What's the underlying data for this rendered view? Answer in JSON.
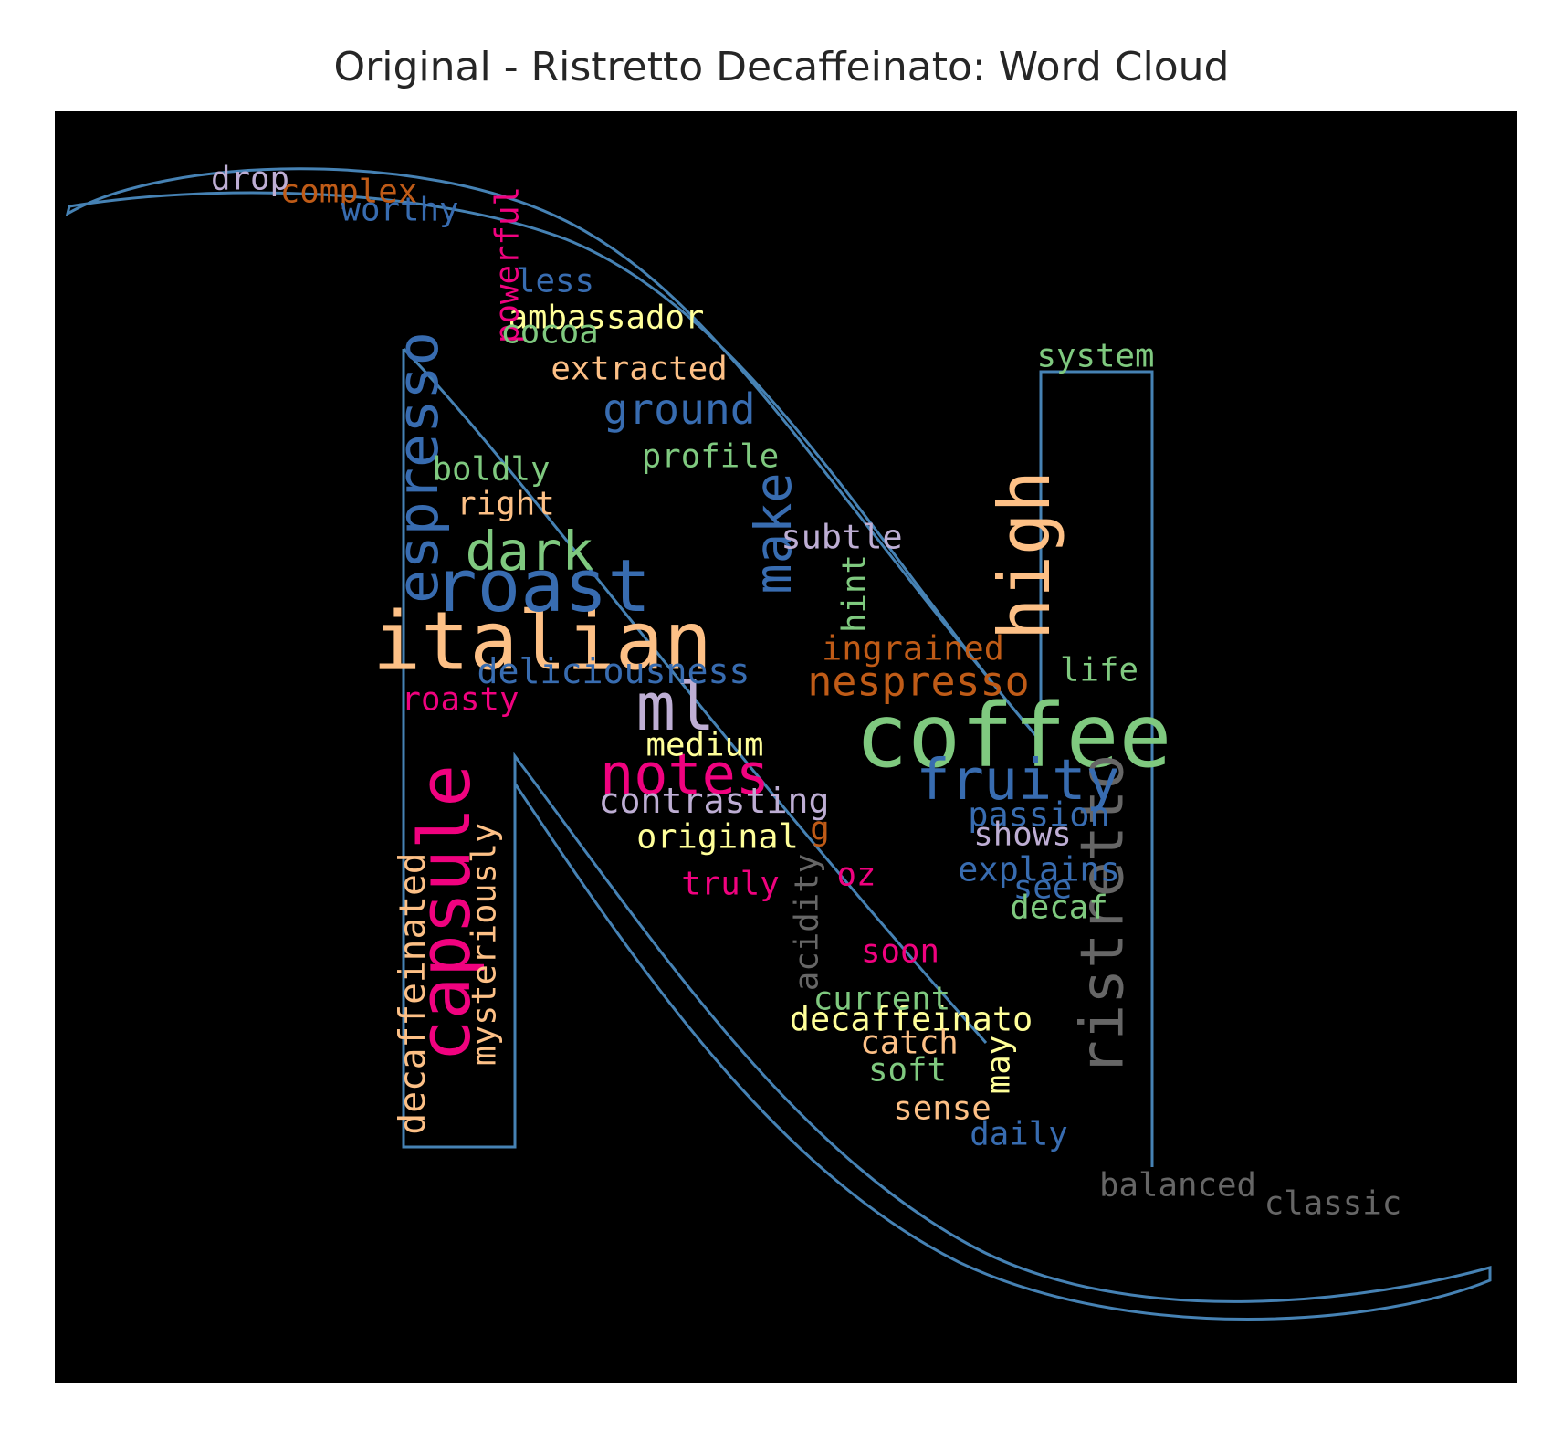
{
  "chart_data": {
    "type": "wordcloud",
    "title": "Original - Ristretto Decaffeinato: Word Cloud",
    "background": "#000000",
    "outline_color": "#4682b4",
    "colors": {
      "green": "#7fc97f",
      "lavender": "#beaed4",
      "peach": "#fdc086",
      "yellow": "#ffff99",
      "blue": "#386cb0",
      "pink": "#f0027f",
      "orange": "#bf5b17",
      "gray": "#666666"
    },
    "words": [
      {
        "text": "coffee",
        "weight": 1.0,
        "color": "green",
        "vertical": false
      },
      {
        "text": "italian",
        "weight": 0.92,
        "color": "peach",
        "vertical": false
      },
      {
        "text": "roast",
        "weight": 0.82,
        "color": "blue",
        "vertical": false
      },
      {
        "text": "high",
        "weight": 0.8,
        "color": "peach",
        "vertical": true
      },
      {
        "text": "capsule",
        "weight": 0.8,
        "color": "pink",
        "vertical": true
      },
      {
        "text": "ml",
        "weight": 0.74,
        "color": "lavender",
        "vertical": false
      },
      {
        "text": "ristretto",
        "weight": 0.66,
        "color": "gray",
        "vertical": true
      },
      {
        "text": "espresso",
        "weight": 0.62,
        "color": "blue",
        "vertical": true
      },
      {
        "text": "fruity",
        "weight": 0.62,
        "color": "blue",
        "vertical": false
      },
      {
        "text": "notes",
        "weight": 0.62,
        "color": "pink",
        "vertical": false
      },
      {
        "text": "dark",
        "weight": 0.58,
        "color": "green",
        "vertical": false
      },
      {
        "text": "make",
        "weight": 0.54,
        "color": "blue",
        "vertical": true
      },
      {
        "text": "ground",
        "weight": 0.42,
        "color": "blue",
        "vertical": false
      },
      {
        "text": "nespresso",
        "weight": 0.4,
        "color": "orange",
        "vertical": false
      },
      {
        "text": "decaffeinated",
        "weight": 0.32,
        "color": "peach",
        "vertical": true
      },
      {
        "text": "contrasting",
        "weight": 0.3,
        "color": "lavender",
        "vertical": false
      },
      {
        "text": "deliciousness",
        "weight": 0.3,
        "color": "blue",
        "vertical": false
      },
      {
        "text": "mysteriously",
        "weight": 0.28,
        "color": "peach",
        "vertical": true
      },
      {
        "text": "original",
        "weight": 0.28,
        "color": "yellow",
        "vertical": false
      },
      {
        "text": "explains",
        "weight": 0.28,
        "color": "blue",
        "vertical": false
      },
      {
        "text": "decaffeinato",
        "weight": 0.28,
        "color": "yellow",
        "vertical": false
      },
      {
        "text": "subtle",
        "weight": 0.28,
        "color": "lavender",
        "vertical": false
      },
      {
        "text": "ingrained",
        "weight": 0.28,
        "color": "orange",
        "vertical": false
      },
      {
        "text": "passion",
        "weight": 0.28,
        "color": "blue",
        "vertical": false
      },
      {
        "text": "extracted",
        "weight": 0.26,
        "color": "peach",
        "vertical": false
      },
      {
        "text": "ambassador",
        "weight": 0.26,
        "color": "yellow",
        "vertical": false
      },
      {
        "text": "powerful",
        "weight": 0.26,
        "color": "pink",
        "vertical": true
      },
      {
        "text": "complex",
        "weight": 0.26,
        "color": "orange",
        "vertical": false
      },
      {
        "text": "worthy",
        "weight": 0.26,
        "color": "blue",
        "vertical": false
      },
      {
        "text": "drop",
        "weight": 0.26,
        "color": "lavender",
        "vertical": false
      },
      {
        "text": "less",
        "weight": 0.26,
        "color": "blue",
        "vertical": false
      },
      {
        "text": "cocoa",
        "weight": 0.26,
        "color": "green",
        "vertical": false
      },
      {
        "text": "system",
        "weight": 0.26,
        "color": "green",
        "vertical": false
      },
      {
        "text": "profile",
        "weight": 0.26,
        "color": "green",
        "vertical": false
      },
      {
        "text": "boldly",
        "weight": 0.26,
        "color": "green",
        "vertical": false
      },
      {
        "text": "right",
        "weight": 0.26,
        "color": "peach",
        "vertical": false
      },
      {
        "text": "hint",
        "weight": 0.26,
        "color": "green",
        "vertical": true
      },
      {
        "text": "life",
        "weight": 0.26,
        "color": "green",
        "vertical": false
      },
      {
        "text": "roasty",
        "weight": 0.26,
        "color": "pink",
        "vertical": false
      },
      {
        "text": "medium",
        "weight": 0.26,
        "color": "yellow",
        "vertical": false
      },
      {
        "text": "shows",
        "weight": 0.26,
        "color": "lavender",
        "vertical": false
      },
      {
        "text": "g",
        "weight": 0.26,
        "color": "orange",
        "vertical": false
      },
      {
        "text": "truly",
        "weight": 0.26,
        "color": "pink",
        "vertical": false
      },
      {
        "text": "oz",
        "weight": 0.26,
        "color": "pink",
        "vertical": false
      },
      {
        "text": "see",
        "weight": 0.26,
        "color": "blue",
        "vertical": false
      },
      {
        "text": "decaf",
        "weight": 0.26,
        "color": "green",
        "vertical": false
      },
      {
        "text": "acidity",
        "weight": 0.26,
        "color": "gray",
        "vertical": true
      },
      {
        "text": "soon",
        "weight": 0.26,
        "color": "pink",
        "vertical": false
      },
      {
        "text": "current",
        "weight": 0.26,
        "color": "green",
        "vertical": false
      },
      {
        "text": "catch",
        "weight": 0.26,
        "color": "peach",
        "vertical": false
      },
      {
        "text": "soft",
        "weight": 0.26,
        "color": "green",
        "vertical": false
      },
      {
        "text": "may",
        "weight": 0.26,
        "color": "yellow",
        "vertical": true
      },
      {
        "text": "sense",
        "weight": 0.26,
        "color": "peach",
        "vertical": false
      },
      {
        "text": "daily",
        "weight": 0.26,
        "color": "blue",
        "vertical": false
      },
      {
        "text": "balanced",
        "weight": 0.26,
        "color": "gray",
        "vertical": false
      },
      {
        "text": "classic",
        "weight": 0.26,
        "color": "gray",
        "vertical": false
      }
    ]
  }
}
